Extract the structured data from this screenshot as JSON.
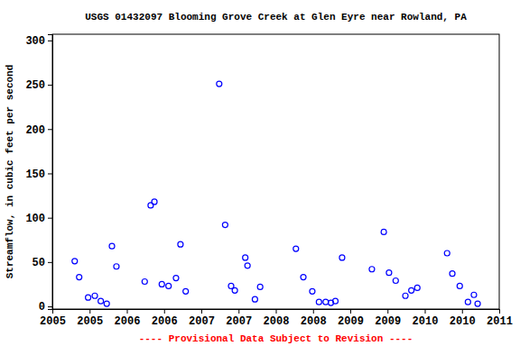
{
  "chart_data": {
    "type": "scatter",
    "title": "USGS 01432097 Blooming Grove Creek at Glen Eyre near Rowland, PA",
    "y_label": "Streamflow, in cubic feet per second",
    "annotations": [
      "---- Provisional Data Subject to Revision ----"
    ],
    "x": [
      2005.3,
      2005.36,
      2005.48,
      2005.57,
      2005.65,
      2005.73,
      2005.8,
      2005.86,
      2006.24,
      2006.32,
      2006.37,
      2006.47,
      2006.56,
      2006.66,
      2006.72,
      2006.79,
      2007.24,
      2007.32,
      2007.4,
      2007.45,
      2007.59,
      2007.62,
      2007.72,
      2007.79,
      2008.27,
      2008.37,
      2008.49,
      2008.58,
      2008.67,
      2008.74,
      2008.8,
      2008.89,
      2009.29,
      2009.45,
      2009.52,
      2009.61,
      2009.74,
      2009.82,
      2009.9,
      2010.3,
      2010.37,
      2010.47,
      2010.58,
      2010.66,
      2010.71
    ],
    "values": [
      51,
      33,
      10,
      12,
      6,
      3,
      68,
      45,
      28,
      114,
      118,
      25,
      23,
      32,
      70,
      17,
      251,
      92,
      23,
      18,
      55,
      46,
      8,
      22,
      65,
      33,
      17,
      5,
      5,
      4,
      6,
      55,
      42,
      84,
      38,
      29,
      12,
      18,
      21,
      60,
      37,
      23,
      5,
      13,
      3
    ],
    "color": "#0000ff",
    "marker": "open-circle",
    "grid": false,
    "xlim": [
      2005,
      2011
    ],
    "xticks": [
      {
        "value": 2005,
        "label": "2005"
      },
      {
        "value": 2005.5,
        "label": "2005"
      },
      {
        "value": 2006,
        "label": "2006"
      },
      {
        "value": 2006.5,
        "label": "2006"
      },
      {
        "value": 2007,
        "label": "2007"
      },
      {
        "value": 2007.5,
        "label": "2007"
      },
      {
        "value": 2008,
        "label": "2008"
      },
      {
        "value": 2008.5,
        "label": "2008"
      },
      {
        "value": 2009,
        "label": "2009"
      },
      {
        "value": 2009.5,
        "label": "2009"
      },
      {
        "value": 2010,
        "label": "2010"
      },
      {
        "value": 2010.5,
        "label": "2010"
      },
      {
        "value": 2011,
        "label": "2011"
      }
    ],
    "ylim": [
      -3,
      307
    ],
    "yticks": [
      0,
      50,
      100,
      150,
      200,
      250,
      300
    ]
  }
}
